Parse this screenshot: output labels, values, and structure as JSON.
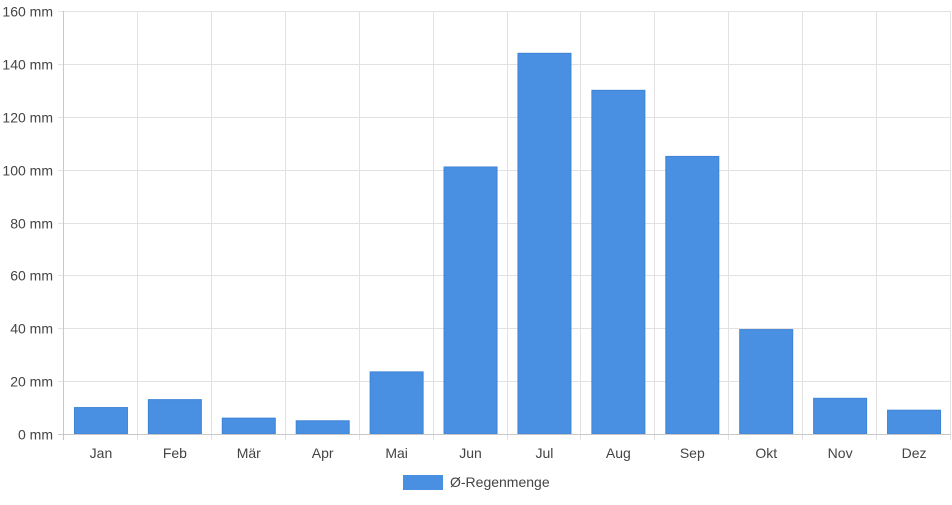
{
  "chart_data": {
    "type": "bar",
    "categories": [
      "Jan",
      "Feb",
      "Mär",
      "Apr",
      "Mai",
      "Jun",
      "Jul",
      "Aug",
      "Sep",
      "Okt",
      "Nov",
      "Dez"
    ],
    "series": [
      {
        "name": "Ø-Regenmenge",
        "color": "#4a90e2",
        "values": [
          10,
          13,
          6,
          5,
          23.5,
          101,
          144,
          130,
          105,
          39.5,
          13.5,
          9
        ]
      }
    ],
    "y_unit": "mm",
    "ylim": [
      0,
      160
    ],
    "y_ticks": [
      0,
      20,
      40,
      60,
      80,
      100,
      120,
      140,
      160
    ],
    "grid": true,
    "legend_position": "bottom-center"
  }
}
